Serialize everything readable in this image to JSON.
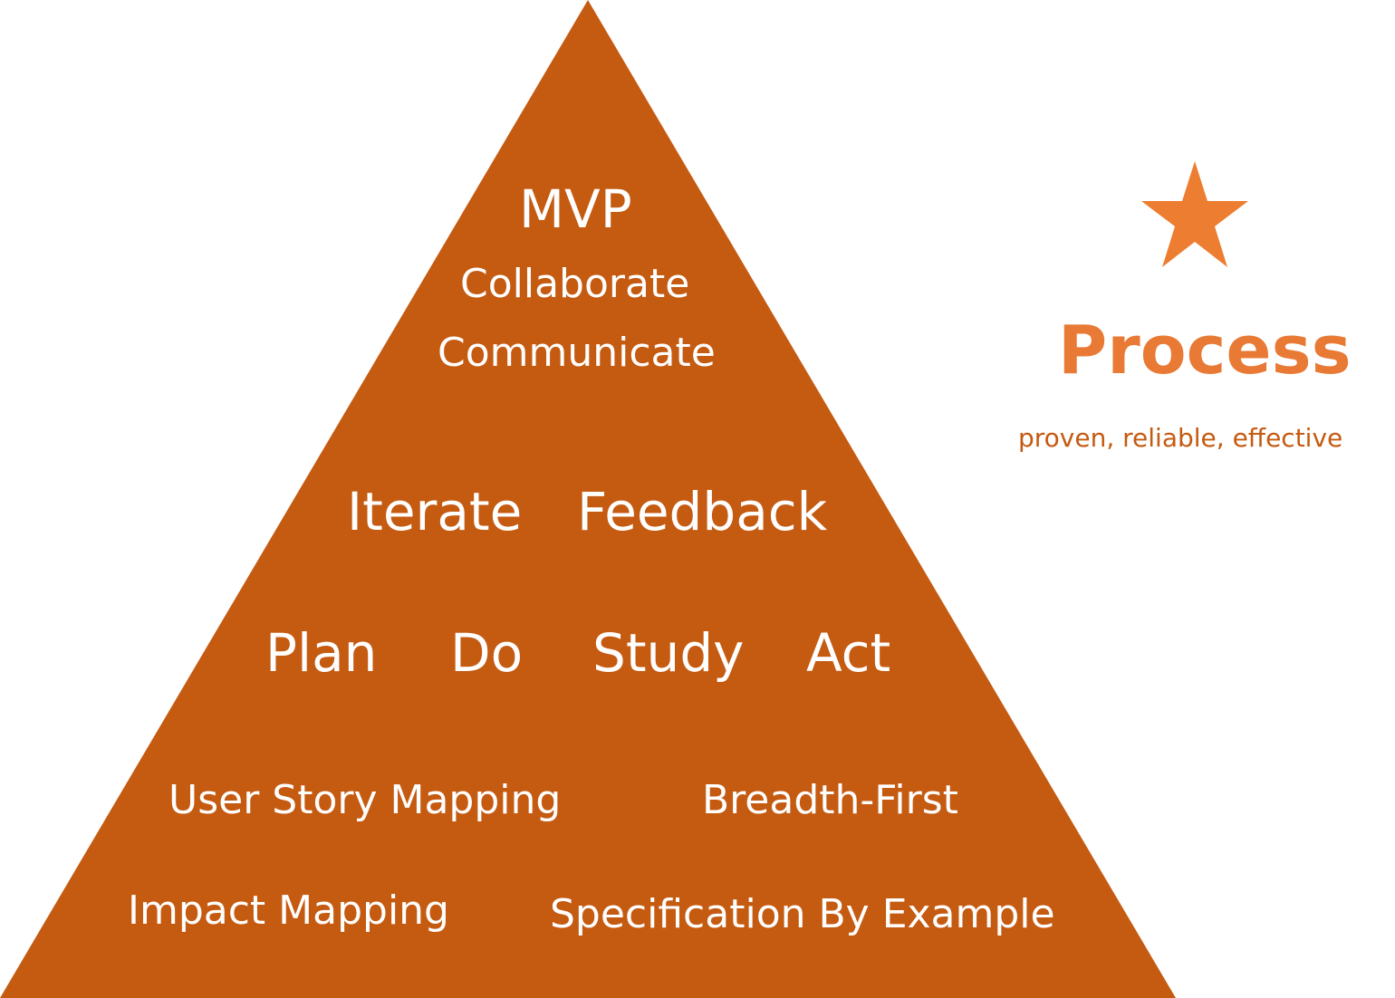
{
  "colors": {
    "pyramid_fill": "#c55a11",
    "pyramid_text": "#ffffff",
    "star": "#ed7d31",
    "title": "#e87a35",
    "subtitle": "#c55a11"
  },
  "pyramid": {
    "top": {
      "mvp": "MVP",
      "collaborate": "Collaborate",
      "communicate": "Communicate"
    },
    "row2": {
      "iterate": "Iterate",
      "feedback": "Feedback"
    },
    "row3": {
      "plan": "Plan",
      "do": "Do",
      "study": "Study",
      "act": "Act"
    },
    "row4": {
      "user_story_mapping": "User Story Mapping",
      "breadth_first": "Breadth-First"
    },
    "row5": {
      "impact_mapping": "Impact Mapping",
      "specification_by_example": "Specification By Example"
    }
  },
  "side": {
    "icon": "star-icon",
    "title": "Process",
    "subtitle": "proven, reliable, effective"
  }
}
